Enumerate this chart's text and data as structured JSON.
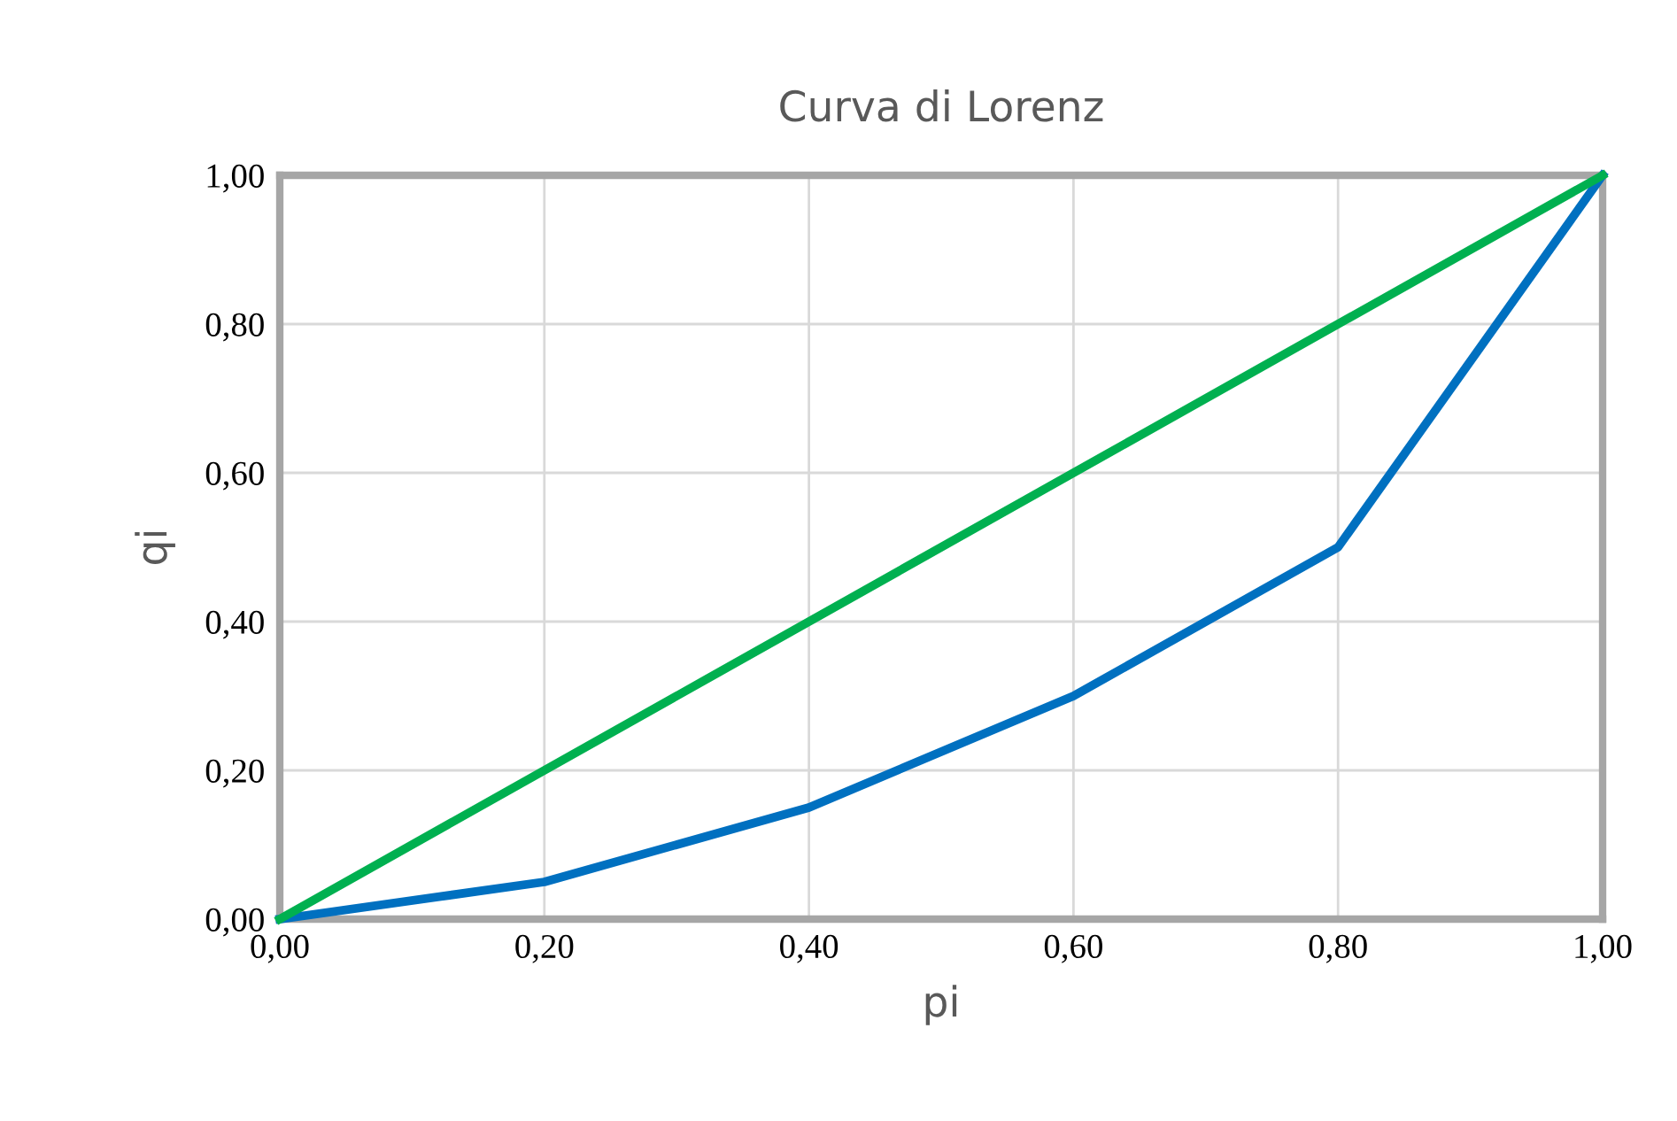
{
  "chart_data": {
    "type": "line",
    "title": "Curva di Lorenz",
    "xlabel": "pi",
    "ylabel": "qi",
    "series": [
      {
        "x": [
          0,
          0.2,
          0.4,
          0.6,
          0.8,
          1.0
        ],
        "values": [
          0,
          0.05,
          0.15,
          0.3,
          0.5,
          1.0
        ],
        "color": "#0070c0"
      },
      {
        "x": [
          0,
          1.0
        ],
        "values": [
          0,
          1.0
        ],
        "color": "#00b050"
      }
    ],
    "xlim": [
      0,
      1
    ],
    "ylim": [
      0,
      1
    ],
    "xticks": [
      {
        "value": 0,
        "label": "0,00"
      },
      {
        "value": 0.2,
        "label": "0,20"
      },
      {
        "value": 0.4,
        "label": "0,40"
      },
      {
        "value": 0.6,
        "label": "0,60"
      },
      {
        "value": 0.8,
        "label": "0,80"
      },
      {
        "value": 1,
        "label": "1,00"
      }
    ],
    "yticks": [
      {
        "value": 0,
        "label": "0,00"
      },
      {
        "value": 0.2,
        "label": "0,20"
      },
      {
        "value": 0.4,
        "label": "0,40"
      },
      {
        "value": 0.6,
        "label": "0,60"
      },
      {
        "value": 0.8,
        "label": "0,80"
      },
      {
        "value": 1,
        "label": "1,00"
      }
    ],
    "grid": true,
    "line_style": "solid",
    "marker": "none"
  }
}
